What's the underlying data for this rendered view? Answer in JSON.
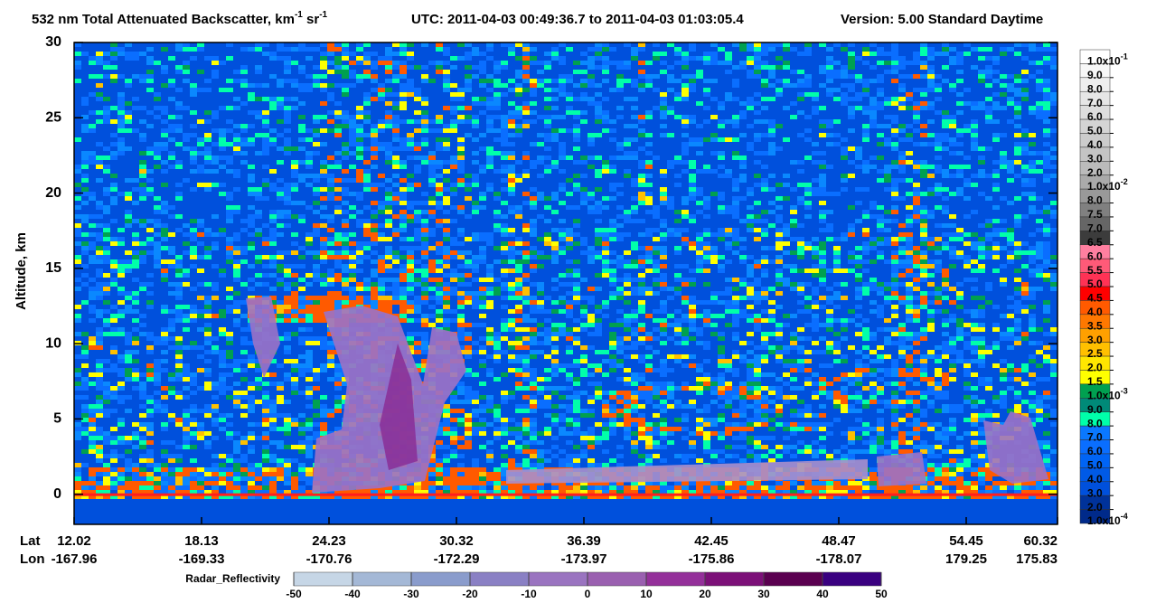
{
  "chart_data": {
    "type": "curtain",
    "title": [
      "532 nm Total Attenuated Backscatter, km",
      "-1",
      " sr",
      "-1"
    ],
    "utc": "UTC:  2011-04-03 00:49:36.7  to  2011-04-03 01:03:05.4",
    "version": "Version: 5.00  Standard  Daytime",
    "ylabel": "Altitude, km",
    "ylim": [
      -2,
      30
    ],
    "yticks": [
      0,
      5,
      10,
      15,
      20,
      25,
      30
    ],
    "x_row_labels": [
      "Lat",
      "Lon"
    ],
    "lat": [
      12.02,
      18.13,
      24.23,
      30.32,
      36.39,
      42.45,
      48.47,
      54.45,
      60.32
    ],
    "lon": [
      -167.96,
      -169.33,
      -170.76,
      -172.29,
      -173.97,
      -175.86,
      -178.07,
      179.25,
      175.83
    ],
    "colorbar": {
      "labels": [
        {
          "text": "1.0x10",
          "exp": "-1"
        },
        "9.0",
        "8.0",
        "7.0",
        "6.0",
        "5.0",
        "4.0",
        "3.0",
        "2.0",
        {
          "text": "1.0x10",
          "exp": "-2"
        },
        "8.0",
        "7.5",
        "7.0",
        "6.5",
        "6.0",
        "5.5",
        "5.0",
        "4.5",
        "4.0",
        "3.5",
        "3.0",
        "2.5",
        "2.0",
        "1.5",
        {
          "text": "1.0x10",
          "exp": "-3"
        },
        "9.0",
        "8.0",
        "7.0",
        "6.0",
        "5.0",
        "4.0",
        "3.0",
        "2.0",
        {
          "text": "1.0x10",
          "exp": "-4"
        }
      ],
      "colors": [
        "#ffffff",
        "#f7f7f7",
        "#eeeeee",
        "#e6e6e6",
        "#dedede",
        "#d4d4d4",
        "#cccccc",
        "#c4c4c4",
        "#bbbbbb",
        "#aaaaaa",
        "#999999",
        "#808080",
        "#666666",
        "#3c3c3c",
        "#ff7fa0",
        "#ff5a78",
        "#ff3255",
        "#ff0000",
        "#ff5a00",
        "#ff7800",
        "#ffa000",
        "#ffc000",
        "#ffe600",
        "#ffff00",
        "#00a050",
        "#008a78",
        "#00ffaa",
        "#0a78ff",
        "#0a6eff",
        "#0064f5",
        "#005ae6",
        "#0050dc",
        "#00329a",
        "#002a8a"
      ]
    },
    "radar_colorbar": {
      "label": "Radar_Reflectivity",
      "clim": [
        -50,
        50
      ],
      "ticks": [
        -50,
        -40,
        -30,
        -20,
        -10,
        0,
        10,
        20,
        30,
        40,
        50
      ],
      "colors": [
        "#c6d6e6",
        "#a4b8d6",
        "#8a9ccc",
        "#8a80c4",
        "#9a74c0",
        "#9a60b0",
        "#94309a",
        "#7c1078",
        "#5a0050",
        "#3a0080"
      ]
    }
  }
}
